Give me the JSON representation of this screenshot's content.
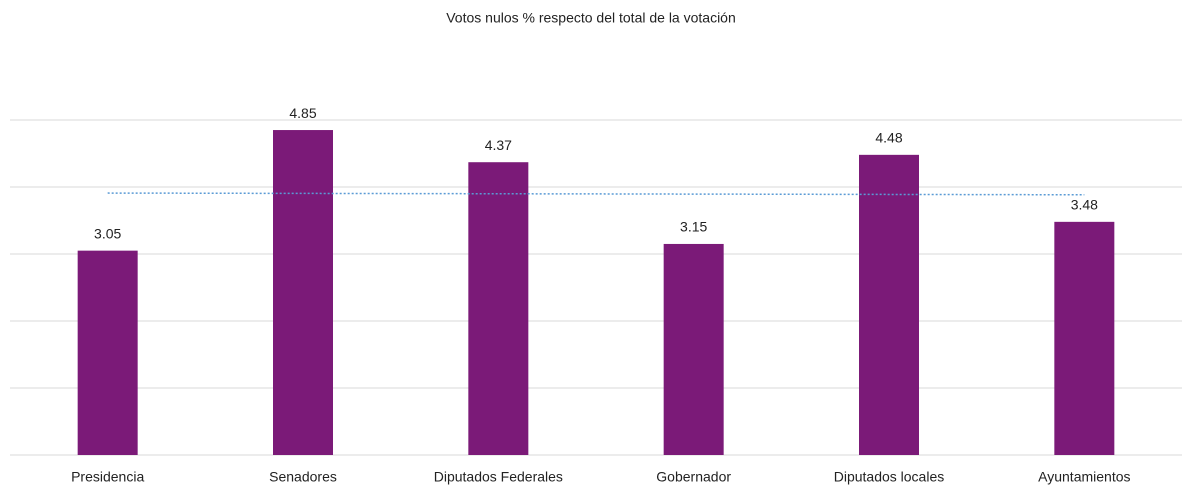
{
  "chart_data": {
    "type": "bar",
    "title": "Votos nulos % respecto del total de la votación",
    "categories": [
      "Presidencia",
      "Senadores",
      "Diputados Federales",
      "Gobernador",
      "Diputados locales",
      "Ayuntamientos"
    ],
    "values": [
      3.05,
      4.85,
      4.37,
      3.15,
      4.48,
      3.48
    ],
    "color": "#7b1a78",
    "ylim": [
      0,
      5
    ],
    "yticks": [
      0,
      1,
      2,
      3,
      4,
      5
    ],
    "grid": true,
    "trendline": "linear",
    "trendline_color": "#5b9bd5"
  }
}
